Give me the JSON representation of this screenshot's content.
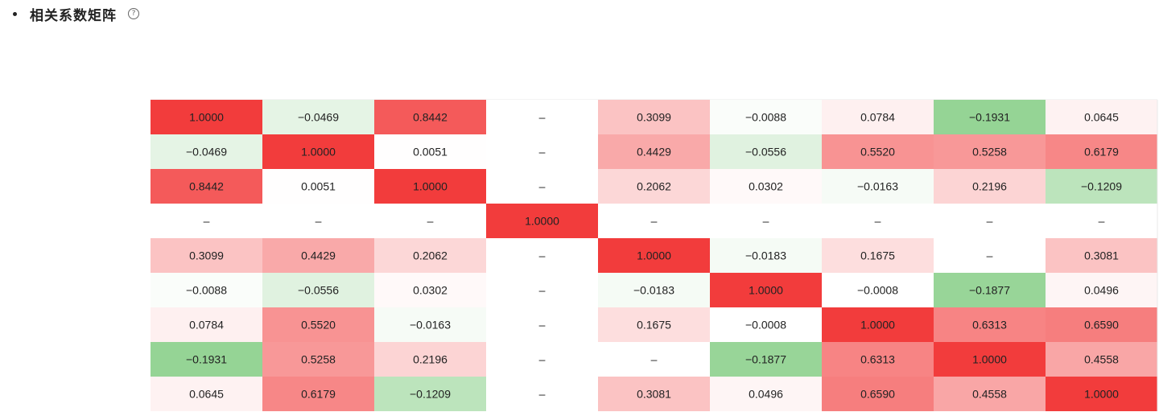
{
  "header": {
    "bullet": "•",
    "title": "相关系数矩阵",
    "help_icon": "?"
  },
  "colors": {
    "positive": "#f23c3c",
    "negative": "#6cc36c",
    "text": "#222222",
    "divider": "#e8e8e8"
  },
  "chart_data": {
    "type": "heatmap",
    "title": "相关系数矩阵",
    "row_labels": [
      "",
      "",
      "",
      "",
      "",
      "",
      "",
      "",
      ""
    ],
    "col_labels": [
      "",
      "",
      "",
      "",
      "",
      "",
      "",
      "",
      ""
    ],
    "values": [
      [
        1.0,
        -0.0469,
        0.8442,
        null,
        0.3099,
        -0.0088,
        0.0784,
        -0.1931,
        0.0645
      ],
      [
        -0.0469,
        1.0,
        0.0051,
        null,
        0.4429,
        -0.0556,
        0.552,
        0.5258,
        0.6179
      ],
      [
        0.8442,
        0.0051,
        1.0,
        null,
        0.2062,
        0.0302,
        -0.0163,
        0.2196,
        -0.1209
      ],
      [
        null,
        null,
        null,
        1.0,
        null,
        null,
        null,
        null,
        null
      ],
      [
        0.3099,
        0.4429,
        0.2062,
        null,
        1.0,
        -0.0183,
        0.1675,
        null,
        0.3081
      ],
      [
        -0.0088,
        -0.0556,
        0.0302,
        null,
        -0.0183,
        1.0,
        -0.0008,
        -0.1877,
        0.0496
      ],
      [
        0.0784,
        0.552,
        -0.0163,
        null,
        0.1675,
        -0.0008,
        1.0,
        0.6313,
        0.659
      ],
      [
        -0.1931,
        0.5258,
        0.2196,
        null,
        null,
        -0.1877,
        0.6313,
        1.0,
        0.4558
      ],
      [
        0.0645,
        0.6179,
        -0.1209,
        null,
        0.3081,
        0.0496,
        0.659,
        0.4558,
        1.0
      ]
    ],
    "display": [
      [
        "1.0000",
        "−0.0469",
        "0.8442",
        "–",
        "0.3099",
        "−0.0088",
        "0.0784",
        "−0.1931",
        "0.0645"
      ],
      [
        "−0.0469",
        "1.0000",
        "0.0051",
        "–",
        "0.4429",
        "−0.0556",
        "0.5520",
        "0.5258",
        "0.6179"
      ],
      [
        "0.8442",
        "0.0051",
        "1.0000",
        "–",
        "0.2062",
        "0.0302",
        "−0.0163",
        "0.2196",
        "−0.1209"
      ],
      [
        "–",
        "–",
        "–",
        "1.0000",
        "–",
        "–",
        "–",
        "–",
        "–"
      ],
      [
        "0.3099",
        "0.4429",
        "0.2062",
        "–",
        "1.0000",
        "−0.0183",
        "0.1675",
        "–",
        "0.3081"
      ],
      [
        "−0.0088",
        "−0.0556",
        "0.0302",
        "–",
        "−0.0183",
        "1.0000",
        "−0.0008",
        "−0.1877",
        "0.0496"
      ],
      [
        "0.0784",
        "0.5520",
        "−0.0163",
        "–",
        "0.1675",
        "−0.0008",
        "1.0000",
        "0.6313",
        "0.6590"
      ],
      [
        "−0.1931",
        "0.5258",
        "0.2196",
        "–",
        "–",
        "−0.1877",
        "0.6313",
        "1.0000",
        "0.4558"
      ],
      [
        "0.0645",
        "0.6179",
        "−0.1209",
        "–",
        "0.3081",
        "0.0496",
        "0.6590",
        "0.4558",
        "1.0000"
      ]
    ],
    "value_range": [
      -1,
      1
    ],
    "legend": "none",
    "grid": false
  }
}
